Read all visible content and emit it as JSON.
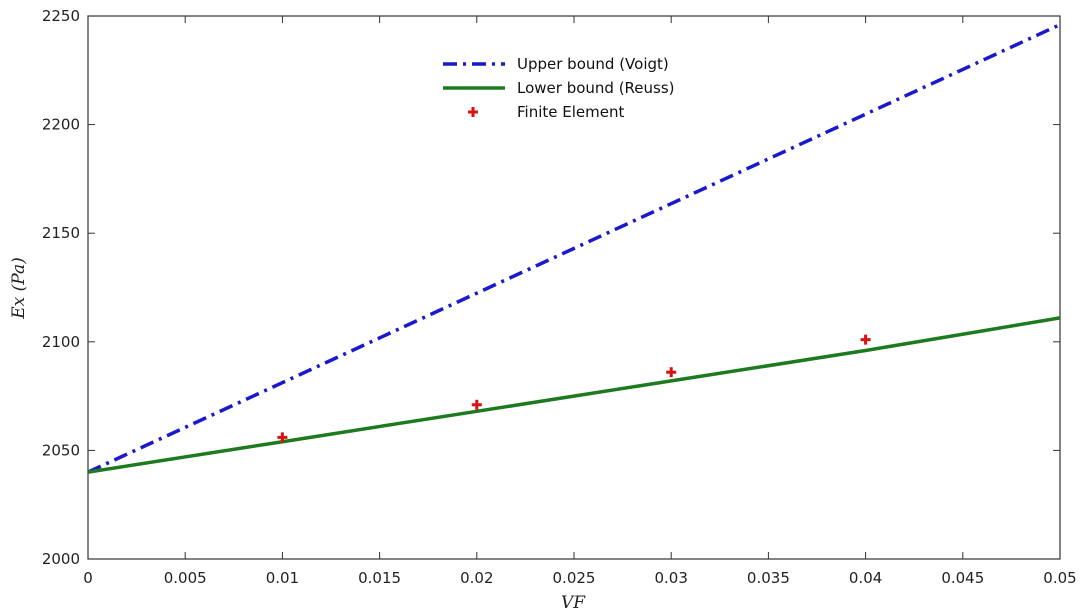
{
  "chart_data": {
    "type": "line",
    "xlabel": "VF",
    "ylabel": "Ex (Pa)",
    "xlim": [
      0,
      0.05
    ],
    "ylim": [
      2000,
      2250
    ],
    "x_ticks": [
      "0",
      "0.005",
      "0.01",
      "0.015",
      "0.02",
      "0.025",
      "0.03",
      "0.035",
      "0.04",
      "0.045",
      "0.05"
    ],
    "x_tick_values": [
      0,
      0.005,
      0.01,
      0.015,
      0.02,
      0.025,
      0.03,
      0.035,
      0.04,
      0.045,
      0.05
    ],
    "y_ticks": [
      "2000",
      "2050",
      "2100",
      "2150",
      "2200",
      "2250"
    ],
    "y_tick_values": [
      2000,
      2050,
      2100,
      2150,
      2200,
      2250
    ],
    "grid": false,
    "legend_position": "top-center",
    "series": [
      {
        "name": "Upper bound (Voigt)",
        "style": "dash-dot",
        "color": "#1a1acc",
        "x": [
          0,
          0.05
        ],
        "y": [
          2040,
          2246
        ]
      },
      {
        "name": "Lower bound (Reuss)",
        "style": "solid",
        "color": "#1e7a1e",
        "x": [
          0,
          0.01,
          0.02,
          0.03,
          0.04,
          0.05
        ],
        "y": [
          2040,
          2054,
          2068,
          2082,
          2096,
          2111
        ]
      },
      {
        "name": "Finite Element",
        "style": "marker-plus",
        "color": "#dd1111",
        "x": [
          0.01,
          0.02,
          0.03,
          0.04
        ],
        "y": [
          2056,
          2071,
          2086,
          2101
        ]
      }
    ]
  }
}
